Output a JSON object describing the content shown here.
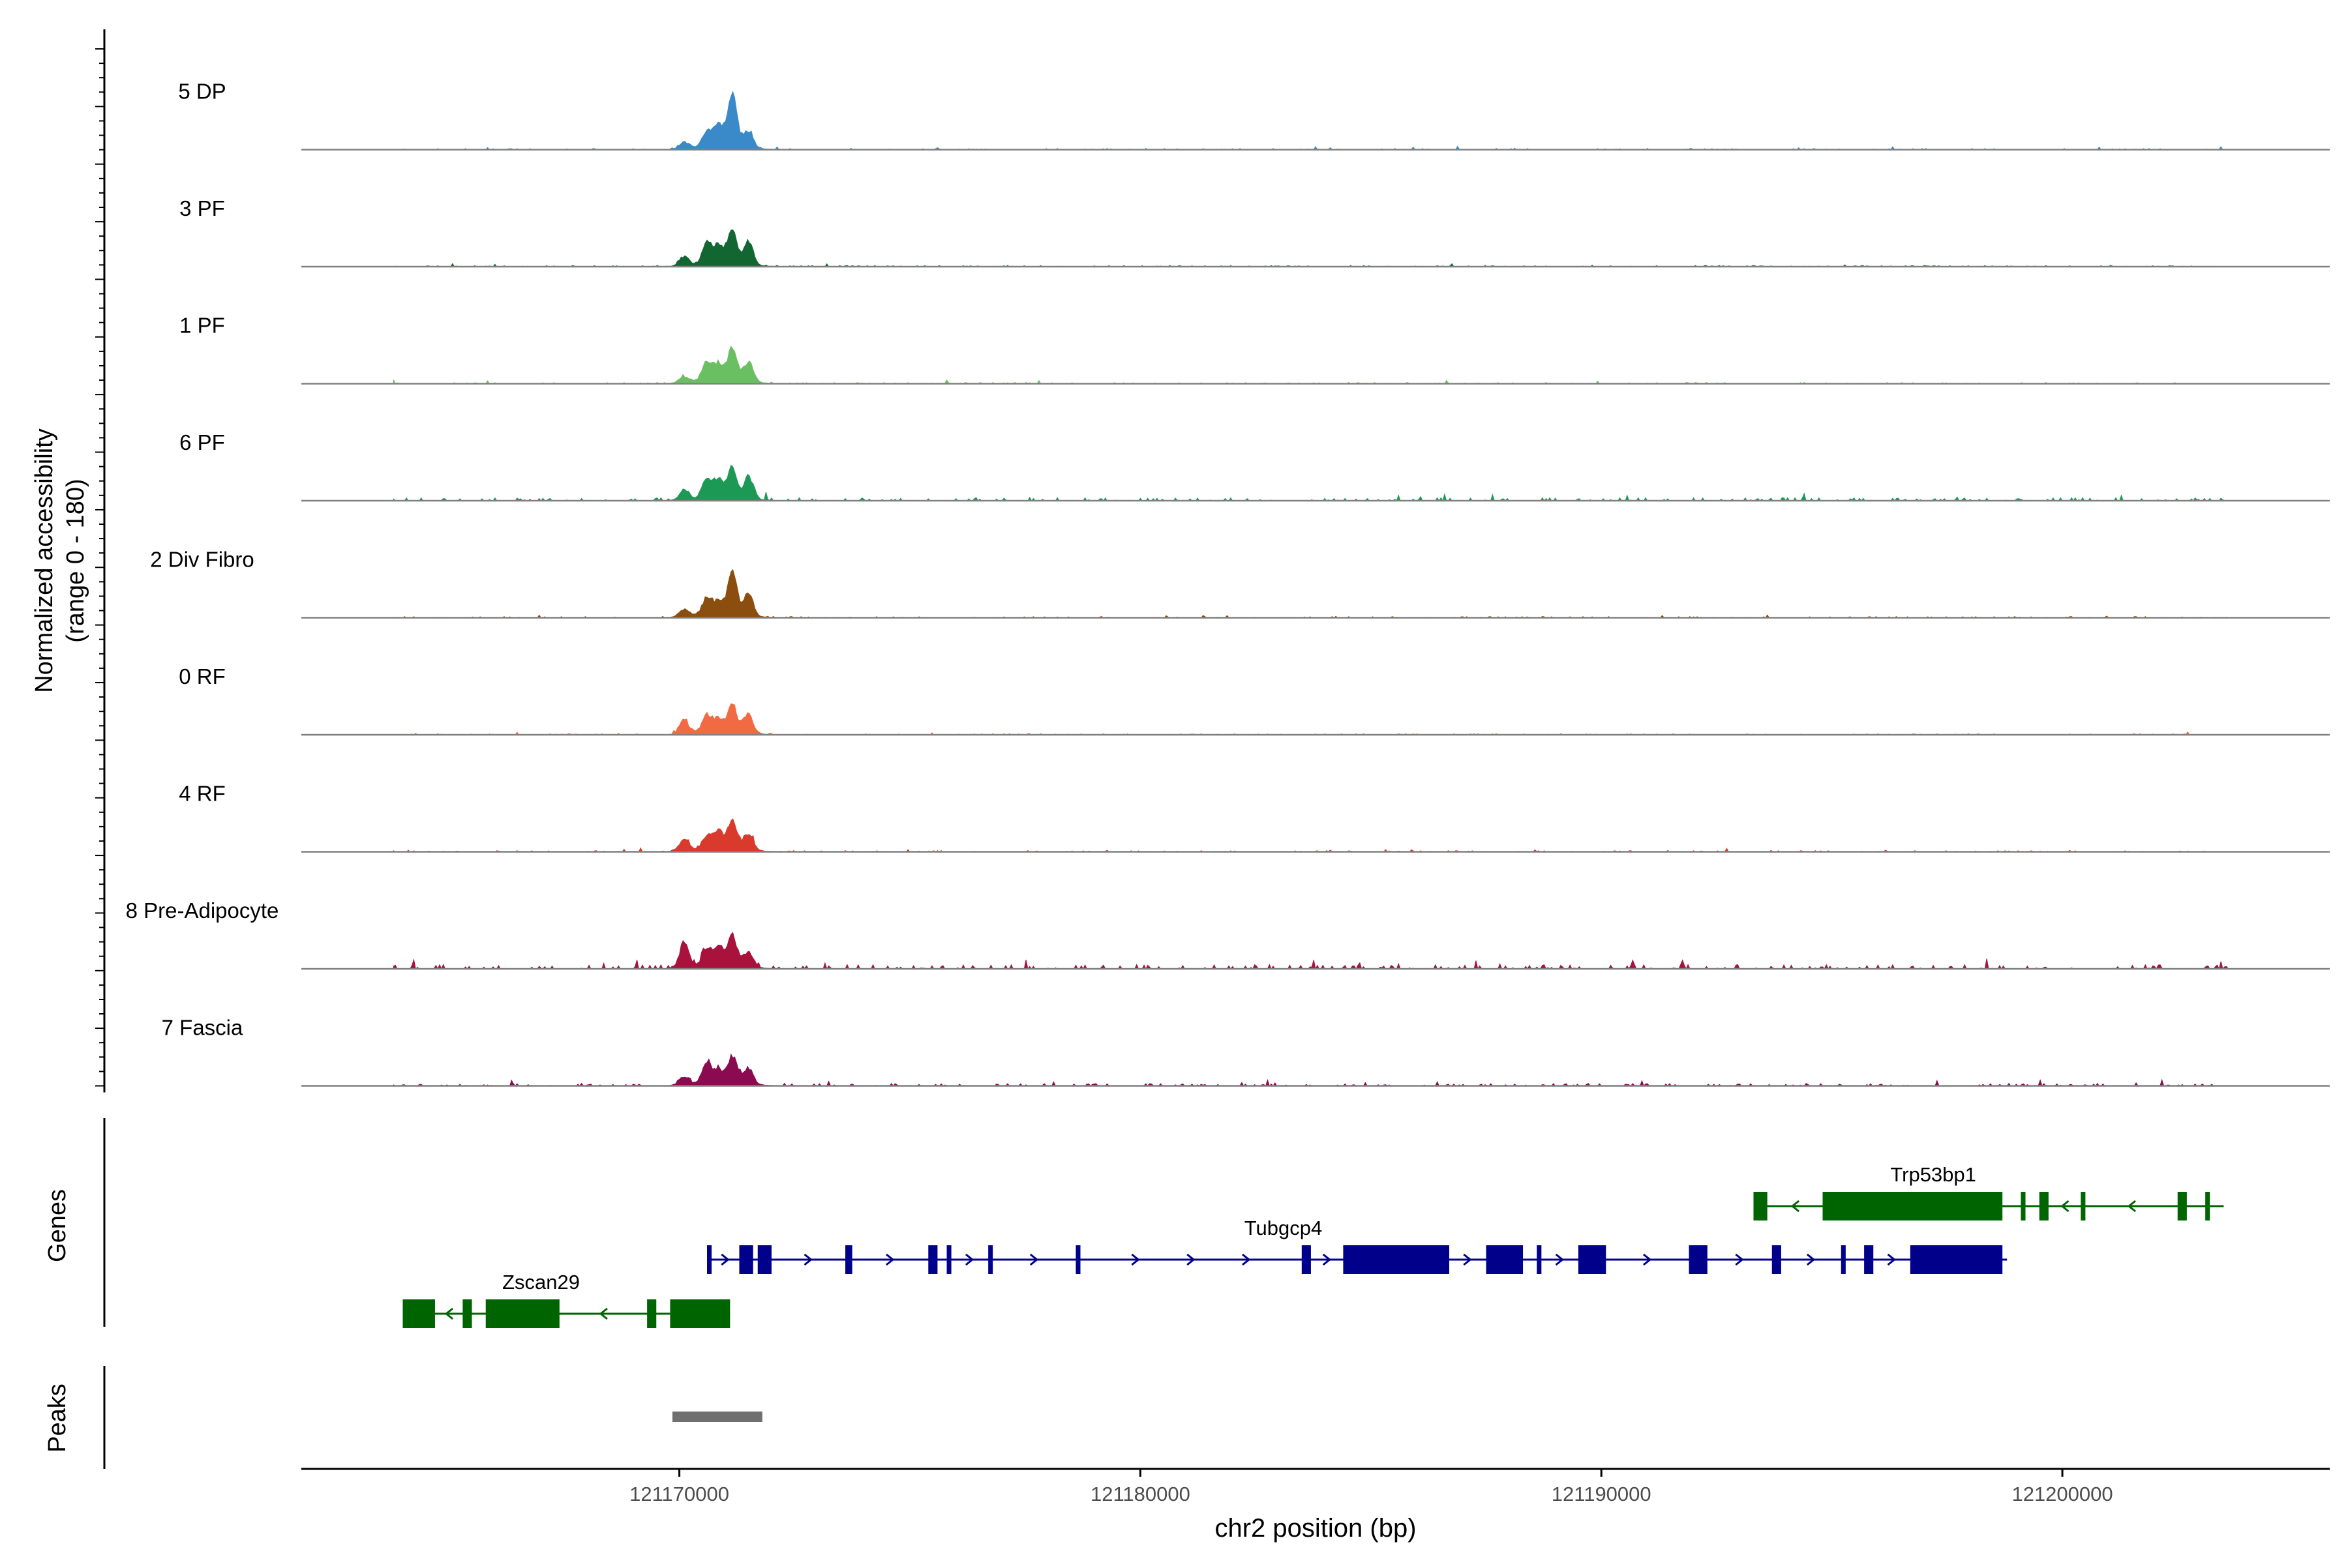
{
  "chart_data": {
    "type": "genome-browser-coverage",
    "y_axis": {
      "label_line1": "Normalized accessibility",
      "label_line2": "(range 0 - 180)",
      "range": [
        0,
        180
      ]
    },
    "x_axis": {
      "label": "chr2 position (bp)",
      "range": [
        121161800,
        121205800
      ],
      "ticks": [
        121170000,
        121180000,
        121190000,
        121200000
      ],
      "tick_labels": [
        "121170000",
        "121180000",
        "121190000",
        "121200000"
      ]
    },
    "tracks_start": 121163800,
    "tracks_end": 121203600,
    "series": [
      {
        "name": "5 DP",
        "color": "#3A8AC9",
        "peaks": [
          [
            121170100,
            10
          ],
          [
            121170600,
            22
          ],
          [
            121170850,
            35
          ],
          [
            121171150,
            85
          ],
          [
            121171500,
            28
          ]
        ],
        "background": 2
      },
      {
        "name": "3 PF",
        "color": "#116632",
        "peaks": [
          [
            121170100,
            16
          ],
          [
            121170600,
            32
          ],
          [
            121170850,
            28
          ],
          [
            121171150,
            55
          ],
          [
            121171500,
            38
          ]
        ],
        "background": 2
      },
      {
        "name": "1 PF",
        "color": "#6BBF63",
        "peaks": [
          [
            121170100,
            10
          ],
          [
            121170600,
            30
          ],
          [
            121170850,
            26
          ],
          [
            121171150,
            52
          ],
          [
            121171500,
            32
          ]
        ],
        "background": 2
      },
      {
        "name": "6 PF",
        "color": "#1C9A55",
        "peaks": [
          [
            121170100,
            16
          ],
          [
            121170600,
            30
          ],
          [
            121170850,
            28
          ],
          [
            121171150,
            48
          ],
          [
            121171500,
            36
          ]
        ],
        "background": 5
      },
      {
        "name": "2 Div Fibro",
        "color": "#8B4E0E",
        "peaks": [
          [
            121170100,
            12
          ],
          [
            121170600,
            28
          ],
          [
            121170850,
            18
          ],
          [
            121171150,
            70
          ],
          [
            121171500,
            38
          ]
        ],
        "background": 2
      },
      {
        "name": "0 RF",
        "color": "#F26A44",
        "peaks": [
          [
            121170100,
            22
          ],
          [
            121170600,
            26
          ],
          [
            121170850,
            20
          ],
          [
            121171150,
            44
          ],
          [
            121171500,
            30
          ]
        ],
        "background": 2
      },
      {
        "name": "4 RF",
        "color": "#D93A2B",
        "peaks": [
          [
            121170100,
            18
          ],
          [
            121170600,
            20
          ],
          [
            121170850,
            26
          ],
          [
            121171150,
            46
          ],
          [
            121171500,
            26
          ]
        ],
        "background": 2
      },
      {
        "name": "8 Pre-Adipocyte",
        "color": "#A8123C",
        "peaks": [
          [
            121170100,
            40
          ],
          [
            121170600,
            25
          ],
          [
            121170850,
            30
          ],
          [
            121171150,
            48
          ],
          [
            121171500,
            25
          ]
        ],
        "background": 7
      },
      {
        "name": "7 Fascia",
        "color": "#8B0A50",
        "peaks": [
          [
            121170100,
            14
          ],
          [
            121170600,
            30
          ],
          [
            121170850,
            20
          ],
          [
            121171150,
            42
          ],
          [
            121171500,
            26
          ]
        ],
        "background": 4
      }
    ],
    "genes_label": "Genes",
    "genes": [
      {
        "name": "Trp53bp1",
        "strand": "-",
        "color": "#006400",
        "start": 121193300,
        "end": 121203500,
        "exons": [
          [
            121193300,
            121193600
          ],
          [
            121194800,
            121198700
          ],
          [
            121199100,
            121199200
          ],
          [
            121199500,
            121199700
          ],
          [
            121200400,
            121200500
          ],
          [
            121202500,
            121202700
          ],
          [
            121203100,
            121203200
          ]
        ],
        "label_pos": 121197200
      },
      {
        "name": "Tubgcp4",
        "strand": "+",
        "color": "#00008B",
        "start": 121170600,
        "end": 121198800,
        "exons": [
          [
            121170600,
            121170700
          ],
          [
            121171300,
            121171600
          ],
          [
            121171700,
            121172000
          ],
          [
            121173600,
            121173750
          ],
          [
            121175400,
            121175600
          ],
          [
            121175800,
            121175900
          ],
          [
            121176700,
            121176800
          ],
          [
            121178600,
            121178700
          ],
          [
            121183500,
            121183700
          ],
          [
            121184400,
            121186700
          ],
          [
            121187500,
            121188300
          ],
          [
            121188600,
            121188700
          ],
          [
            121189500,
            121190100
          ],
          [
            121191900,
            121192300
          ],
          [
            121193700,
            121193900
          ],
          [
            121195200,
            121195300
          ],
          [
            121195700,
            121195900
          ],
          [
            121196700,
            121198700
          ]
        ],
        "label_pos": 121183100
      },
      {
        "name": "Zscan29",
        "strand": "-",
        "color": "#006400",
        "start": 121164000,
        "end": 121171100,
        "exons": [
          [
            121164000,
            121164700
          ],
          [
            121165300,
            121165500
          ],
          [
            121165800,
            121167400
          ],
          [
            121169300,
            121169500
          ],
          [
            121169800,
            121171100
          ]
        ],
        "label_pos": 121167000
      }
    ],
    "peaks_label": "Peaks",
    "peak_regions": [
      [
        121169850,
        121171800
      ]
    ]
  }
}
